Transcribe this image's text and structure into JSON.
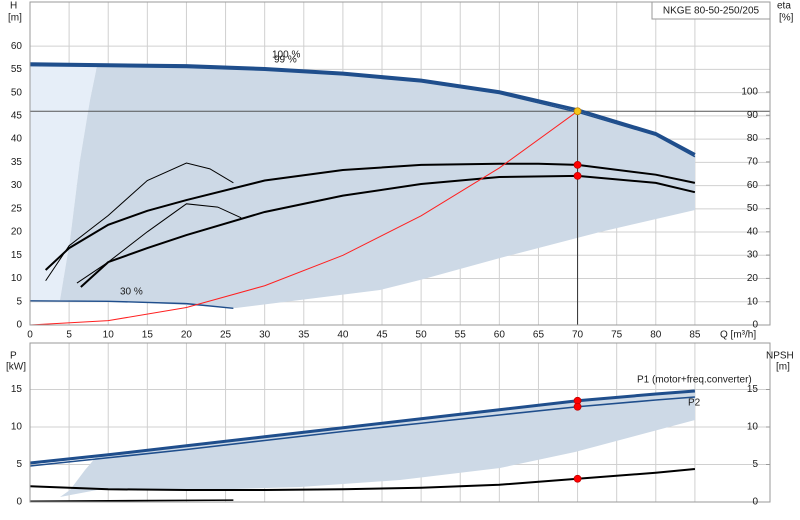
{
  "chart_data": [
    {
      "type": "line",
      "title": "NKGE 80-50-250/205",
      "y_label": "H",
      "y_unit": "[m]",
      "y2_label": "eta",
      "y2_unit": "[%]",
      "x_label": "Q [m³/h]",
      "xlim": [
        0,
        94.6
      ],
      "xticks": [
        0,
        5,
        10,
        15,
        20,
        25,
        30,
        35,
        40,
        45,
        50,
        55,
        60,
        65,
        70,
        75,
        80,
        85
      ],
      "ylim": [
        0,
        69.5
      ],
      "yticks": [
        0,
        5,
        10,
        15,
        20,
        25,
        30,
        35,
        40,
        45,
        50,
        55,
        60
      ],
      "y2lim": [
        0,
        138.6
      ],
      "y2ticks": [
        0,
        10,
        20,
        30,
        40,
        50,
        60,
        70,
        80,
        90,
        100
      ],
      "grid": true,
      "series": [
        {
          "name": "100 %",
          "color": "#1f4e8c",
          "x": [
            0,
            10,
            20,
            30,
            40,
            50,
            60,
            70,
            80,
            85
          ],
          "values": [
            56.2,
            56,
            55.8,
            55.2,
            54.2,
            52.7,
            50.2,
            46.3,
            41.2,
            36.7
          ]
        },
        {
          "name": "99 %",
          "color": "#1f4e8c",
          "x": [
            0,
            10,
            20,
            30,
            40,
            50,
            60,
            70,
            80,
            85
          ],
          "values": [
            55.8,
            55.6,
            55.4,
            54.8,
            53.8,
            52.3,
            49.8,
            45.8,
            40.8,
            36.2
          ]
        },
        {
          "name": "30 %",
          "color": "#1f4e8c",
          "x": [
            0,
            10,
            20,
            26
          ],
          "values": [
            5.2,
            5.1,
            4.6,
            3.6
          ]
        },
        {
          "color": "#000000",
          "axis": "y2",
          "x": [
            2,
            5,
            10,
            15,
            20,
            30,
            40,
            50,
            60,
            65,
            70,
            80,
            85
          ],
          "values": [
            23.6,
            33,
            43,
            49,
            53.6,
            62,
            66.5,
            68.7,
            69.2,
            69.2,
            68.7,
            64.5,
            61
          ]
        },
        {
          "color": "#000000",
          "axis": "y2",
          "x": [
            6.5,
            10,
            15,
            20,
            30,
            40,
            50,
            60,
            70,
            80,
            85
          ],
          "values": [
            16.3,
            27,
            33,
            38.6,
            48.5,
            55.5,
            60.5,
            63.5,
            64,
            61,
            57
          ]
        },
        {
          "color": "#000000",
          "axis": "y2",
          "x": [
            2,
            5,
            10,
            15,
            20,
            23,
            26
          ],
          "values": [
            19,
            34,
            47,
            62,
            69.5,
            67,
            61
          ]
        },
        {
          "color": "#000000",
          "axis": "y2",
          "x": [
            6,
            10,
            15,
            20,
            24,
            27
          ],
          "values": [
            18,
            27,
            40,
            52,
            50.6,
            46
          ]
        },
        {
          "color": "#ff2020",
          "x": [
            0,
            10,
            20,
            30,
            40,
            50,
            60,
            70
          ],
          "values": [
            0,
            0.94,
            3.76,
            8.45,
            15,
            23.5,
            33.8,
            46
          ]
        }
      ],
      "markers": [
        {
          "x": 70,
          "value": 46,
          "color": "#f5c518"
        },
        {
          "x": 70,
          "value": 68.7,
          "color": "#ff0000",
          "axis": "y2"
        },
        {
          "x": 70,
          "value": 64,
          "color": "#ff0000",
          "axis": "y2"
        }
      ]
    },
    {
      "type": "line",
      "y_label": "P",
      "y_unit": "[kW]",
      "y2_label": "NPSH",
      "y2_unit": "[m]",
      "xlim": [
        0,
        94.6
      ],
      "ylim": [
        0,
        21.2
      ],
      "yticks": [
        0,
        5,
        10,
        15
      ],
      "y2lim": [
        0,
        21.2
      ],
      "y2ticks": [
        0,
        5,
        10,
        15
      ],
      "grid": true,
      "series": [
        {
          "name": "P1 (motor+freq.converter)",
          "color": "#1f4e8c",
          "x": [
            0,
            10,
            20,
            30,
            40,
            50,
            60,
            70,
            80,
            85
          ],
          "values": [
            5.2,
            6.3,
            7.5,
            8.7,
            9.9,
            11.1,
            12.3,
            13.5,
            14.4,
            14.8
          ]
        },
        {
          "name": "P2",
          "color": "#1f4e8c",
          "x": [
            0,
            10,
            20,
            30,
            40,
            50,
            60,
            70,
            80,
            85
          ],
          "values": [
            4.8,
            5.9,
            7.0,
            8.2,
            9.4,
            10.5,
            11.6,
            12.7,
            13.6,
            14.0
          ]
        },
        {
          "color": "#000000",
          "axis": "y2",
          "x": [
            0,
            10,
            20,
            30,
            40,
            50,
            60,
            70,
            80,
            85
          ],
          "values": [
            2.1,
            1.7,
            1.6,
            1.6,
            1.7,
            1.9,
            2.3,
            3.1,
            3.9,
            4.4
          ]
        },
        {
          "color": "#000000",
          "axis": "y2",
          "x": [
            0,
            26
          ],
          "values": [
            0.1,
            0.25
          ]
        }
      ],
      "markers": [
        {
          "x": 70,
          "value": 13.5,
          "color": "#ff0000"
        },
        {
          "x": 70,
          "value": 12.7,
          "color": "#ff0000"
        },
        {
          "x": 70,
          "value": 3.1,
          "color": "#ff0000",
          "axis": "y2"
        }
      ]
    }
  ]
}
